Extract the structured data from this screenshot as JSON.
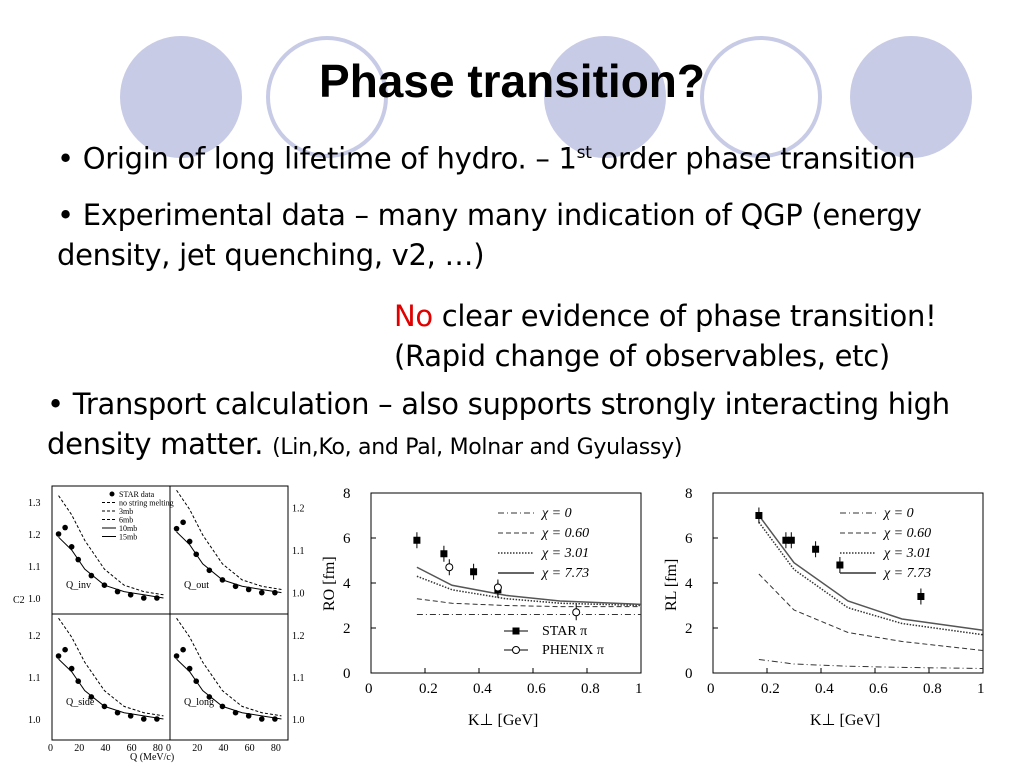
{
  "title": "Phase transition?",
  "bullet1": {
    "marker": "•",
    "text_a": "Origin of long lifetime of hydro. – 1",
    "sup": "st",
    "text_b": " order phase transition"
  },
  "bullet2": {
    "marker": "•",
    "line1": "Experimental data – many many indication of QGP (energy",
    "line2": "density, jet quenching, v2, …)"
  },
  "note": {
    "no": "No",
    "line1_rest": " clear evidence of phase transition!",
    "line2": "(Rapid change of observables, etc)"
  },
  "bullet3": {
    "marker": "•",
    "line1": "Transport calculation – also supports strongly interacting high",
    "line2": "density matter. ",
    "cite": "(Lin,Ko, and Pal, Molnar and Gyulassy)"
  },
  "colors": {
    "circle": "#c8cbe6",
    "accent_red": "#e00000"
  },
  "chart_data": [
    {
      "type": "line",
      "panels": [
        "Q_inv",
        "Q_out",
        "Q_side",
        "Q_long"
      ],
      "ylabel": "C2",
      "xlabel": "Q (MeV/c)",
      "xticks": [
        "0",
        "20",
        "40",
        "60",
        "80"
      ],
      "yticks_top": [
        "1.0",
        "1.1",
        "1.2",
        "1.3"
      ],
      "yticks_right": [
        "1.0",
        "1.1",
        "1.2"
      ],
      "yticks_bottom": [
        "1.0",
        "1.1",
        "1.2"
      ],
      "legend": [
        "STAR data",
        "no string melting",
        "3mb",
        "6mb",
        "10mb",
        "15mb"
      ],
      "series": [
        {
          "name": "STAR data",
          "x": [
            5,
            10,
            15,
            20,
            30,
            40,
            50,
            60,
            70,
            80
          ],
          "y": [
            1.2,
            1.22,
            1.16,
            1.12,
            1.07,
            1.04,
            1.02,
            1.01,
            1.0,
            1.0
          ]
        },
        {
          "name": "no string melting",
          "x": [
            5,
            15,
            25,
            40,
            55,
            70,
            85
          ],
          "y": [
            1.32,
            1.26,
            1.18,
            1.09,
            1.04,
            1.02,
            1.01
          ]
        },
        {
          "name": "15mb",
          "x": [
            5,
            15,
            25,
            40,
            55,
            70,
            85
          ],
          "y": [
            1.19,
            1.15,
            1.09,
            1.04,
            1.02,
            1.01,
            1.0
          ]
        }
      ]
    },
    {
      "type": "line",
      "xlabel": "K⊥ [GeV]",
      "ylabel": "RO [fm]",
      "xlim": [
        0,
        1
      ],
      "ylim": [
        0,
        8
      ],
      "xticks": [
        "0",
        "0.2",
        "0.4",
        "0.6",
        "0.8",
        "1"
      ],
      "yticks": [
        "0",
        "2",
        "4",
        "6",
        "8"
      ],
      "legend": [
        "χ = 0",
        "χ = 0.60",
        "χ = 3.01",
        "χ = 7.73",
        "STAR π",
        "PHENIX π"
      ],
      "series": [
        {
          "name": "χ = 0",
          "x": [
            0.17,
            0.3,
            0.5,
            0.7,
            1.0
          ],
          "y": [
            2.6,
            2.6,
            2.6,
            2.6,
            2.6
          ]
        },
        {
          "name": "χ = 0.60",
          "x": [
            0.17,
            0.3,
            0.5,
            0.7,
            1.0
          ],
          "y": [
            3.3,
            3.1,
            3.0,
            2.95,
            2.95
          ]
        },
        {
          "name": "χ = 3.01",
          "x": [
            0.17,
            0.3,
            0.5,
            0.7,
            1.0
          ],
          "y": [
            4.3,
            3.7,
            3.3,
            3.1,
            3.0
          ]
        },
        {
          "name": "χ = 7.73",
          "x": [
            0.17,
            0.3,
            0.5,
            0.7,
            1.0
          ],
          "y": [
            4.7,
            3.9,
            3.45,
            3.2,
            3.05
          ]
        },
        {
          "name": "STAR π",
          "x": [
            0.17,
            0.27,
            0.38,
            0.47
          ],
          "y": [
            5.9,
            5.3,
            4.5,
            3.7
          ]
        },
        {
          "name": "PHENIX π",
          "x": [
            0.29,
            0.47,
            0.76
          ],
          "y": [
            4.7,
            3.8,
            2.7
          ]
        }
      ]
    },
    {
      "type": "line",
      "xlabel": "K⊥ [GeV]",
      "ylabel": "RL [fm]",
      "xlim": [
        0,
        1
      ],
      "ylim": [
        0,
        8
      ],
      "xticks": [
        "0",
        "0.2",
        "0.4",
        "0.6",
        "0.8",
        "1"
      ],
      "yticks": [
        "0",
        "2",
        "4",
        "6",
        "8"
      ],
      "legend": [
        "χ = 0",
        "χ = 0.60",
        "χ = 3.01",
        "χ = 7.73"
      ],
      "series": [
        {
          "name": "χ = 0",
          "x": [
            0.17,
            0.3,
            0.5,
            0.7,
            1.0
          ],
          "y": [
            0.6,
            0.4,
            0.3,
            0.25,
            0.2
          ]
        },
        {
          "name": "χ = 0.60",
          "x": [
            0.17,
            0.3,
            0.5,
            0.7,
            1.0
          ],
          "y": [
            4.4,
            2.8,
            1.8,
            1.4,
            1.0
          ]
        },
        {
          "name": "χ = 3.01",
          "x": [
            0.17,
            0.3,
            0.5,
            0.7,
            1.0
          ],
          "y": [
            6.7,
            4.6,
            2.9,
            2.2,
            1.7
          ]
        },
        {
          "name": "χ = 7.73",
          "x": [
            0.17,
            0.3,
            0.5,
            0.7,
            1.0
          ],
          "y": [
            7.0,
            4.9,
            3.2,
            2.4,
            1.9
          ]
        },
        {
          "name": "data",
          "x": [
            0.17,
            0.27,
            0.29,
            0.38,
            0.47,
            0.77
          ],
          "y": [
            7.0,
            5.9,
            5.9,
            5.5,
            4.8,
            3.4
          ]
        }
      ]
    }
  ]
}
